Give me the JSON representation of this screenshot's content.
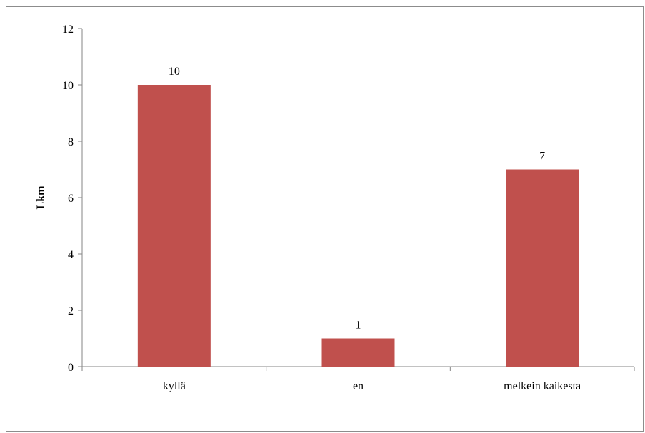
{
  "chart_data": {
    "type": "bar",
    "categories": [
      "kyllä",
      "en",
      "melkein kaikesta"
    ],
    "values": [
      10,
      1,
      7
    ],
    "data_labels": [
      "10",
      "1",
      "7"
    ],
    "title": "",
    "xlabel": "",
    "ylabel": "Lkm",
    "ylim": [
      0,
      12
    ],
    "yticks": [
      0,
      2,
      4,
      6,
      8,
      10,
      12
    ],
    "grid": false,
    "legend": "none",
    "bar_color": "#c0504d",
    "axis_color": "#868686"
  }
}
